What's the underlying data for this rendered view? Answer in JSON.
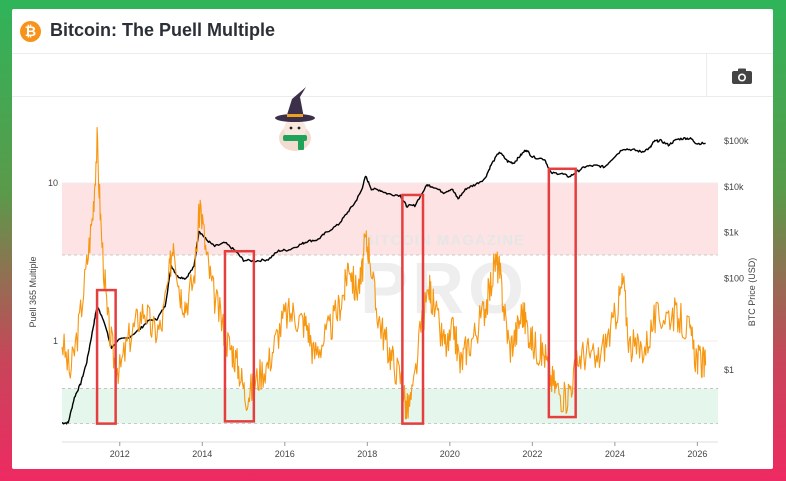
{
  "header": {
    "logo_glyph": "₿",
    "title": "Bitcoin: The Puell Multiple"
  },
  "toolbar": {
    "camera_icon": "camera-icon"
  },
  "watermark": {
    "line1": "BITCOIN MAGAZINE",
    "line2": "PRO"
  },
  "colors": {
    "puell": "#f7960f",
    "price": "#000000",
    "upper_band": "#fde3e4",
    "lower_band": "#e5f7ec",
    "highlight_box": "#e53e3e",
    "border_top": "#2fb45a",
    "border_bottom": "#ee2a62"
  },
  "chart_data": {
    "type": "line",
    "x_ticks": [
      "2012",
      "2014",
      "2016",
      "2018",
      "2020",
      "2022",
      "2024",
      "2026"
    ],
    "left_axis": {
      "title": "Puell 365 Multiple",
      "scale": "log",
      "ticks": [
        "10",
        "1"
      ]
    },
    "right_axis": {
      "title": "BTC Price (USD)",
      "scale": "log",
      "ticks": [
        "$100k",
        "$10k",
        "$1k",
        "$100",
        "$1"
      ]
    },
    "bands": [
      {
        "name": "upper",
        "from": 3.5,
        "to": 10
      },
      {
        "name": "lower",
        "from": 0.3,
        "to": 0.5
      }
    ],
    "highlight_ranges": [
      {
        "from": 2011.45,
        "to": 2011.9,
        "ymin": 0.3,
        "ymax": 2.1
      },
      {
        "from": 2014.55,
        "to": 2015.25,
        "ymin": 0.31,
        "ymax": 3.7
      },
      {
        "from": 2018.85,
        "to": 2019.35,
        "ymin": 0.3,
        "ymax": 8.4
      },
      {
        "from": 2022.4,
        "to": 2023.05,
        "ymin": 0.33,
        "ymax": 12.3
      }
    ],
    "series": [
      {
        "role": "puell",
        "points": [
          [
            2010.6,
            1.0
          ],
          [
            2010.8,
            0.62
          ],
          [
            2011.0,
            1.2
          ],
          [
            2011.2,
            3.0
          ],
          [
            2011.35,
            6.5
          ],
          [
            2011.45,
            18.0
          ],
          [
            2011.55,
            5.0
          ],
          [
            2011.7,
            1.4
          ],
          [
            2011.85,
            0.8
          ],
          [
            2012.0,
            0.65
          ],
          [
            2012.2,
            1.0
          ],
          [
            2012.4,
            1.3
          ],
          [
            2012.6,
            1.6
          ],
          [
            2012.8,
            1.15
          ],
          [
            2013.0,
            1.2
          ],
          [
            2013.2,
            2.6
          ],
          [
            2013.3,
            4.6
          ],
          [
            2013.45,
            2.1
          ],
          [
            2013.6,
            1.7
          ],
          [
            2013.8,
            2.5
          ],
          [
            2013.95,
            7.5
          ],
          [
            2014.1,
            3.5
          ],
          [
            2014.25,
            2.1
          ],
          [
            2014.45,
            1.4
          ],
          [
            2014.6,
            1.0
          ],
          [
            2014.75,
            0.85
          ],
          [
            2014.9,
            0.65
          ],
          [
            2015.05,
            0.45
          ],
          [
            2015.2,
            0.5
          ],
          [
            2015.4,
            0.62
          ],
          [
            2015.6,
            0.72
          ],
          [
            2015.8,
            1.05
          ],
          [
            2016.0,
            1.45
          ],
          [
            2016.2,
            1.5
          ],
          [
            2016.4,
            1.35
          ],
          [
            2016.55,
            1.25
          ],
          [
            2016.7,
            0.82
          ],
          [
            2016.9,
            0.98
          ],
          [
            2017.1,
            1.2
          ],
          [
            2017.3,
            1.6
          ],
          [
            2017.45,
            2.1
          ],
          [
            2017.55,
            3.3
          ],
          [
            2017.7,
            2.1
          ],
          [
            2017.85,
            2.4
          ],
          [
            2017.95,
            4.3
          ],
          [
            2018.05,
            3.8
          ],
          [
            2018.2,
            1.7
          ],
          [
            2018.35,
            1.2
          ],
          [
            2018.5,
            0.9
          ],
          [
            2018.65,
            0.72
          ],
          [
            2018.85,
            0.55
          ],
          [
            2018.95,
            0.36
          ],
          [
            2019.1,
            0.45
          ],
          [
            2019.3,
            1.2
          ],
          [
            2019.5,
            2.2
          ],
          [
            2019.6,
            1.7
          ],
          [
            2019.8,
            1.05
          ],
          [
            2019.95,
            0.9
          ],
          [
            2020.1,
            1.2
          ],
          [
            2020.25,
            0.7
          ],
          [
            2020.4,
            0.9
          ],
          [
            2020.6,
            1.1
          ],
          [
            2020.8,
            1.5
          ],
          [
            2020.95,
            2.0
          ],
          [
            2021.1,
            3.2
          ],
          [
            2021.2,
            2.8
          ],
          [
            2021.3,
            1.7
          ],
          [
            2021.45,
            0.9
          ],
          [
            2021.6,
            1.1
          ],
          [
            2021.75,
            1.55
          ],
          [
            2021.85,
            1.3
          ],
          [
            2022.0,
            0.98
          ],
          [
            2022.15,
            0.88
          ],
          [
            2022.3,
            0.82
          ],
          [
            2022.45,
            0.58
          ],
          [
            2022.6,
            0.5
          ],
          [
            2022.8,
            0.42
          ],
          [
            2022.95,
            0.55
          ],
          [
            2023.15,
            0.8
          ],
          [
            2023.35,
            0.85
          ],
          [
            2023.55,
            0.72
          ],
          [
            2023.75,
            0.95
          ],
          [
            2023.95,
            1.25
          ],
          [
            2024.1,
            1.8
          ],
          [
            2024.2,
            2.4
          ],
          [
            2024.35,
            0.95
          ],
          [
            2024.55,
            0.88
          ],
          [
            2024.75,
            0.92
          ],
          [
            2024.95,
            1.35
          ],
          [
            2025.15,
            1.45
          ],
          [
            2025.4,
            1.5
          ],
          [
            2025.6,
            1.35
          ],
          [
            2025.8,
            1.15
          ],
          [
            2025.95,
            0.82
          ],
          [
            2026.1,
            0.72
          ],
          [
            2026.2,
            0.7
          ]
        ]
      },
      {
        "role": "price",
        "points": [
          [
            2010.6,
            0.07
          ],
          [
            2010.75,
            0.07
          ],
          [
            2010.9,
            0.25
          ],
          [
            2011.05,
            0.5
          ],
          [
            2011.2,
            1.5
          ],
          [
            2011.35,
            8.0
          ],
          [
            2011.45,
            25.0
          ],
          [
            2011.6,
            13.0
          ],
          [
            2011.8,
            3.0
          ],
          [
            2011.95,
            4.5
          ],
          [
            2012.2,
            5.0
          ],
          [
            2012.5,
            8.0
          ],
          [
            2012.7,
            12.0
          ],
          [
            2012.9,
            13.0
          ],
          [
            2013.1,
            25.0
          ],
          [
            2013.25,
            190.0
          ],
          [
            2013.4,
            110.0
          ],
          [
            2013.6,
            100.0
          ],
          [
            2013.8,
            180.0
          ],
          [
            2013.92,
            1100.0
          ],
          [
            2014.1,
            700.0
          ],
          [
            2014.3,
            500.0
          ],
          [
            2014.55,
            600.0
          ],
          [
            2014.8,
            400.0
          ],
          [
            2015.0,
            250.0
          ],
          [
            2015.3,
            240.0
          ],
          [
            2015.6,
            260.0
          ],
          [
            2015.85,
            400.0
          ],
          [
            2016.1,
            420.0
          ],
          [
            2016.4,
            560.0
          ],
          [
            2016.55,
            650.0
          ],
          [
            2016.8,
            700.0
          ],
          [
            2017.0,
            1000.0
          ],
          [
            2017.3,
            1500.0
          ],
          [
            2017.5,
            2600.0
          ],
          [
            2017.7,
            4500.0
          ],
          [
            2017.85,
            8000.0
          ],
          [
            2017.96,
            17000.0
          ],
          [
            2018.1,
            9000.0
          ],
          [
            2018.3,
            8500.0
          ],
          [
            2018.5,
            7000.0
          ],
          [
            2018.8,
            6500.0
          ],
          [
            2018.95,
            3800.0
          ],
          [
            2019.15,
            3900.0
          ],
          [
            2019.45,
            11000.0
          ],
          [
            2019.6,
            10000.0
          ],
          [
            2019.85,
            7500.0
          ],
          [
            2020.05,
            9000.0
          ],
          [
            2020.2,
            5500.0
          ],
          [
            2020.4,
            9200.0
          ],
          [
            2020.6,
            11000.0
          ],
          [
            2020.85,
            15000.0
          ],
          [
            2021.0,
            30000.0
          ],
          [
            2021.2,
            58000.0
          ],
          [
            2021.4,
            36000.0
          ],
          [
            2021.55,
            33000.0
          ],
          [
            2021.7,
            47000.0
          ],
          [
            2021.85,
            65000.0
          ],
          [
            2022.0,
            45000.0
          ],
          [
            2022.3,
            40000.0
          ],
          [
            2022.45,
            20000.0
          ],
          [
            2022.7,
            19500.0
          ],
          [
            2022.9,
            16500.0
          ],
          [
            2023.1,
            22000.0
          ],
          [
            2023.3,
            28000.0
          ],
          [
            2023.55,
            29000.0
          ],
          [
            2023.75,
            27000.0
          ],
          [
            2023.95,
            42000.0
          ],
          [
            2024.2,
            68000.0
          ],
          [
            2024.45,
            64000.0
          ],
          [
            2024.65,
            58000.0
          ],
          [
            2024.85,
            70000.0
          ],
          [
            2024.95,
            98000.0
          ],
          [
            2025.1,
            102000.0
          ],
          [
            2025.3,
            82000.0
          ],
          [
            2025.5,
            108000.0
          ],
          [
            2025.7,
            115000.0
          ],
          [
            2025.85,
            112000.0
          ],
          [
            2025.98,
            88000.0
          ],
          [
            2026.2,
            89000.0
          ]
        ]
      }
    ]
  }
}
